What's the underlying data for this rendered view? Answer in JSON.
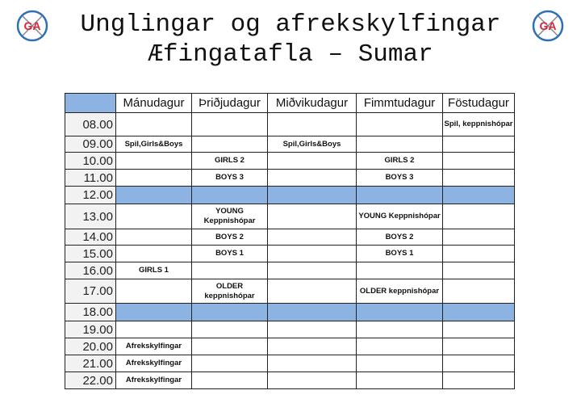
{
  "header": {
    "title_line1": "Unglingar og afrekskylfingar",
    "title_line2": "Æfingatafla – Sumar",
    "logo_text": "GA"
  },
  "colors": {
    "accent": "#8db3e2",
    "time_column": "#f2f2f2",
    "logo_red": "#d9263a",
    "logo_blue": "#2d6fb8"
  },
  "table": {
    "days": [
      "Mánudagur",
      "Þriðjudagur",
      "Miðvikudagur",
      "Fimmtudagur",
      "Föstudagur"
    ],
    "rows": [
      {
        "time": "08.00",
        "cells": [
          "",
          "",
          "",
          "",
          "Spil, keppnishópar"
        ]
      },
      {
        "time": "09.00",
        "cells": [
          "Spil,Girls&Boys",
          "",
          "Spil,Girls&Boys",
          "",
          ""
        ]
      },
      {
        "time": "10.00",
        "cells": [
          "",
          "GIRLS 2",
          "",
          "GIRLS 2",
          ""
        ]
      },
      {
        "time": "11.00",
        "cells": [
          "",
          "BOYS 3",
          "",
          "BOYS 3",
          ""
        ]
      },
      {
        "time": "12.00",
        "break": true,
        "cells": [
          "",
          "",
          "",
          "",
          ""
        ]
      },
      {
        "time": "13.00",
        "cells": [
          "",
          "YOUNG Keppnishópar",
          "",
          "YOUNG Keppnishópar",
          ""
        ]
      },
      {
        "time": "14.00",
        "cells": [
          "",
          "BOYS 2",
          "",
          "BOYS 2",
          ""
        ]
      },
      {
        "time": "15.00",
        "cells": [
          "",
          "BOYS 1",
          "",
          "BOYS 1",
          ""
        ]
      },
      {
        "time": "16.00",
        "cells": [
          "GIRLS 1",
          "",
          "",
          "",
          ""
        ]
      },
      {
        "time": "17.00",
        "cells": [
          "",
          "OLDER keppnishópar",
          "",
          "OLDER keppnishópar",
          ""
        ]
      },
      {
        "time": "18.00",
        "break": true,
        "cells": [
          "",
          "",
          "",
          "",
          ""
        ]
      },
      {
        "time": "19.00",
        "cells": [
          "",
          "",
          "",
          "",
          ""
        ]
      },
      {
        "time": "20.00",
        "cells": [
          "Afrekskylfingar",
          "",
          "",
          "",
          ""
        ]
      },
      {
        "time": "21.00",
        "cells": [
          "Afrekskylfingar",
          "",
          "",
          "",
          ""
        ]
      },
      {
        "time": "22.00",
        "cells": [
          "Afrekskylfingar",
          "",
          "",
          "",
          ""
        ]
      }
    ]
  }
}
